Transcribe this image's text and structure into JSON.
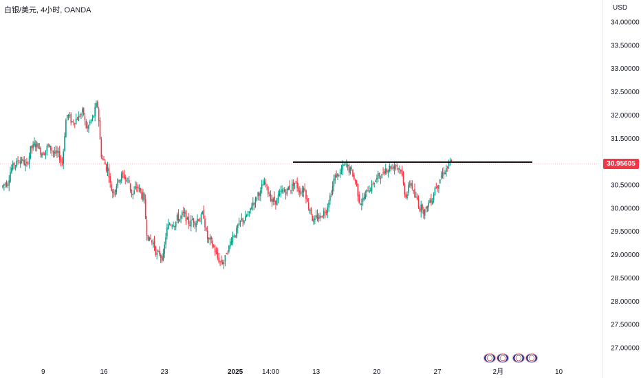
{
  "header": {
    "title": "白银/美元, 4小时, OANDA",
    "currency": "USD"
  },
  "price_badge": "30.95605",
  "colors": {
    "up": "#089981",
    "down": "#f23645",
    "resistance": "#000000",
    "price_line": "#f23645"
  },
  "events": [
    {
      "icon": "us-flag-icon"
    },
    {
      "icon": "us-flag-icon"
    },
    {
      "icon": "us-flag-icon"
    },
    {
      "icon": "us-flag-icon"
    }
  ],
  "chart_data": {
    "type": "candlestick",
    "y_ticks": [
      "34.00000",
      "33.50000",
      "33.00000",
      "32.50000",
      "32.00000",
      "31.50000",
      "31.00000",
      "30.50000",
      "30.00000",
      "29.50000",
      "29.00000",
      "28.50000",
      "28.00000",
      "27.50000",
      "27.00000"
    ],
    "y_tick_values": [
      34.0,
      33.5,
      33.0,
      32.5,
      32.0,
      31.5,
      31.0,
      30.5,
      30.0,
      29.5,
      29.0,
      28.5,
      28.0,
      27.5,
      27.0
    ],
    "x_ticks": [
      {
        "label": "9",
        "i": 8,
        "bold": false
      },
      {
        "label": "16",
        "i": 20,
        "bold": false
      },
      {
        "label": "23",
        "i": 32,
        "bold": false
      },
      {
        "label": "2025",
        "i": 46,
        "bold": true
      },
      {
        "label": "14:00",
        "i": 53,
        "bold": false
      },
      {
        "label": "13",
        "i": 62,
        "bold": false
      },
      {
        "label": "20",
        "i": 74,
        "bold": false
      },
      {
        "label": "27",
        "i": 86,
        "bold": false
      },
      {
        "label": "2月",
        "i": 98,
        "bold": false
      },
      {
        "label": "10",
        "i": 110,
        "bold": false
      }
    ],
    "ylim": [
      26.7,
      34.3
    ],
    "current_price": 30.95605,
    "resistance": {
      "value": 30.99,
      "from_i": 57,
      "to_i": 104
    },
    "closes": [
      30.55,
      30.85,
      30.95,
      31.05,
      30.9,
      31.3,
      31.35,
      31.2,
      31.3,
      31.25,
      31.15,
      31.0,
      32.0,
      31.85,
      31.95,
      32.05,
      31.7,
      31.9,
      32.2,
      31.05,
      30.85,
      30.35,
      30.55,
      30.7,
      30.6,
      30.3,
      30.45,
      30.25,
      29.4,
      29.25,
      29.0,
      28.95,
      29.6,
      29.7,
      29.8,
      29.85,
      29.7,
      29.75,
      29.8,
      29.85,
      29.3,
      29.15,
      28.9,
      28.85,
      29.15,
      29.45,
      29.6,
      29.75,
      29.85,
      30.15,
      30.35,
      30.5,
      30.3,
      30.15,
      30.25,
      30.35,
      30.45,
      30.55,
      30.4,
      30.45,
      30.0,
      29.7,
      29.8,
      29.95,
      30.25,
      30.65,
      30.75,
      30.9,
      30.8,
      30.6,
      30.15,
      30.25,
      30.45,
      30.6,
      30.7,
      30.85,
      30.9,
      30.95,
      30.85,
      30.3,
      30.55,
      30.2,
      30.0,
      29.95,
      30.2,
      30.5,
      30.7,
      30.85,
      30.95
    ],
    "series_start_i": 0
  }
}
